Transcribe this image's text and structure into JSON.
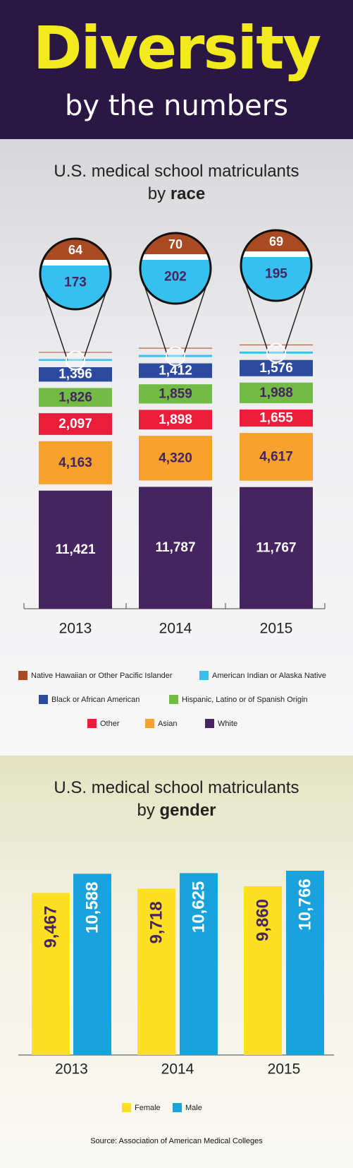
{
  "header": {
    "title": "Diversity",
    "subtitle": "by the numbers"
  },
  "race": {
    "title_line1": "U.S. medical school matriculants",
    "title_line2_prefix": "by ",
    "title_line2_bold": "race"
  },
  "gender": {
    "title_line1": "U.S. medical school matriculants",
    "title_line2_prefix": "by ",
    "title_line2_bold": "gender"
  },
  "source": "Source: Association of American Medical Colleges",
  "chart_data": [
    {
      "type": "bar",
      "stacked": true,
      "categories": [
        "2013",
        "2014",
        "2015"
      ],
      "series": [
        {
          "name": "White",
          "color": "#46245f",
          "label_color": "#ffffff",
          "values": [
            11421,
            11787,
            11767
          ]
        },
        {
          "name": "Asian",
          "color": "#f7a22d",
          "label_color": "#46245f",
          "values": [
            4163,
            4320,
            4617
          ]
        },
        {
          "name": "Other",
          "color": "#ec1c3b",
          "label_color": "#ffffff",
          "values": [
            2097,
            1898,
            1655
          ]
        },
        {
          "name": "Hispanic, Latino or of Spanish Origin",
          "color": "#72bb45",
          "label_color": "#46245f",
          "values": [
            1826,
            1859,
            1988
          ]
        },
        {
          "name": "Black or African American",
          "color": "#2e4a9e",
          "label_color": "#ffffff",
          "values": [
            1396,
            1412,
            1576
          ]
        },
        {
          "name": "American Indian or Alaska Native",
          "color": "#35c0ef",
          "label_color": "#46245f",
          "values": [
            173,
            202,
            195
          ]
        },
        {
          "name": "Native Hawaiian or Other Pacific Islander",
          "color": "#a94a22",
          "label_color": "#ffffff",
          "values": [
            64,
            70,
            69
          ]
        }
      ],
      "value_labels": [
        [
          "11,421",
          "4,163",
          "2,097",
          "1,826",
          "1,396",
          "173",
          "64"
        ],
        [
          "11,787",
          "4,320",
          "1,898",
          "1,859",
          "1,412",
          "202",
          "70"
        ],
        [
          "11,767",
          "4,617",
          "1,655",
          "1,988",
          "1,576",
          "195",
          "69"
        ]
      ],
      "legend": [
        [
          "Native Hawaiian or Other Pacific Islander",
          "American Indian or Alaska Native"
        ],
        [
          "Black or African American",
          "Hispanic, Latino or of Spanish Origin"
        ],
        [
          "Other",
          "Asian",
          "White"
        ]
      ],
      "legend_placement": "bottom"
    },
    {
      "type": "bar",
      "categories": [
        "2013",
        "2014",
        "2015"
      ],
      "series": [
        {
          "name": "Female",
          "color": "#fde021",
          "label_color": "#46245f",
          "values": [
            9467,
            9718,
            9860
          ],
          "labels": [
            "9,467",
            "9,718",
            "9,860"
          ]
        },
        {
          "name": "Male",
          "color": "#1aa2dc",
          "label_color": "#ffffff",
          "values": [
            10588,
            10625,
            10766
          ],
          "labels": [
            "10,588",
            "10,625",
            "10,766"
          ]
        }
      ],
      "legend_placement": "bottom"
    }
  ]
}
